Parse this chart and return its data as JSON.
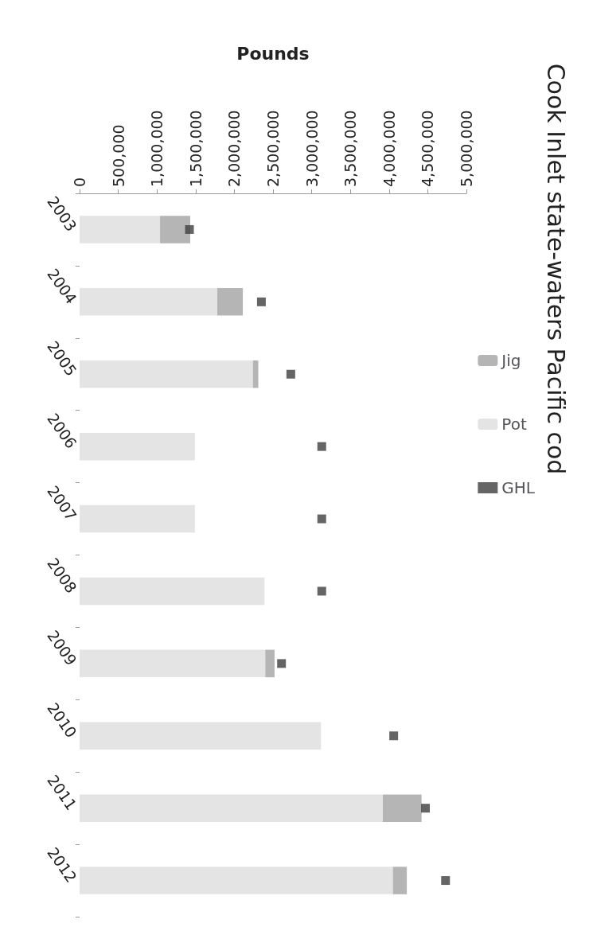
{
  "chart_data": {
    "type": "bar",
    "title": "Cook Inlet state-waters Pacific cod",
    "xlabel": "Pounds",
    "orientation": "horizontal",
    "stacked": true,
    "categories": [
      "2003",
      "2004",
      "2005",
      "2006",
      "2007",
      "2008",
      "2009",
      "2010",
      "2011",
      "2012"
    ],
    "series": [
      {
        "name": "Pot",
        "color": "#e4e4e4",
        "values": [
          1040000,
          1780000,
          2240000,
          1490000,
          1490000,
          2390000,
          2400000,
          3120000,
          3920000,
          4050000
        ]
      },
      {
        "name": "Jig",
        "color": "#b5b5b5",
        "values": [
          390000,
          330000,
          70000,
          0,
          0,
          0,
          120000,
          0,
          500000,
          180000
        ]
      },
      {
        "name": "GHL",
        "type": "scatter",
        "marker": "square",
        "color": "#3f3f3f",
        "values": [
          1420000,
          2350000,
          2730000,
          3130000,
          3130000,
          3130000,
          2610000,
          4060000,
          4470000,
          4730000
        ]
      }
    ],
    "xlim": [
      0,
      5000000
    ],
    "xticks": [
      0,
      {
        "value": 500000,
        "label": "500,000"
      },
      {
        "value": 1000000,
        "label": "1,000,000"
      },
      {
        "value": 1500000,
        "label": "1,500,000"
      },
      {
        "value": 2000000,
        "label": "2,000,000"
      },
      {
        "value": 2500000,
        "label": "2,500,000"
      },
      {
        "value": 3000000,
        "label": "3,000,000"
      },
      {
        "value": 3500000,
        "label": "3,500,000"
      },
      {
        "value": 4000000,
        "label": "4,000,000"
      },
      {
        "value": 4500000,
        "label": "4,500,000"
      },
      {
        "value": 5000000,
        "label": "5,000,000"
      }
    ],
    "legend": "right",
    "grid": false
  }
}
